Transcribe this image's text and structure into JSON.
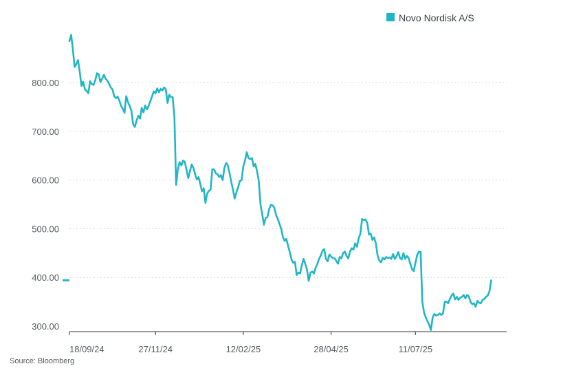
{
  "chart_data": {
    "type": "line",
    "title": "",
    "xlabel": "",
    "ylabel": "",
    "source": "Source: Bloomberg",
    "legend": {
      "position": "top-right",
      "label": "Novo Nordisk A/S"
    },
    "series_color": "#20b6c6",
    "grid_color": "#d6d9dc",
    "axis_color": "#333333",
    "ylim": [
      290,
      900
    ],
    "yticks": [
      {
        "value": 300,
        "label": "300.00"
      },
      {
        "value": 400,
        "label": "400.00"
      },
      {
        "value": 500,
        "label": "500.00"
      },
      {
        "value": 600,
        "label": "600.00"
      },
      {
        "value": 700,
        "label": "700.00"
      },
      {
        "value": 800,
        "label": "800.00"
      }
    ],
    "xlim": [
      0,
      254
    ],
    "xticks": [
      {
        "value": 0,
        "label": "18/09/24"
      },
      {
        "value": 50,
        "label": "27/11/24"
      },
      {
        "value": 101,
        "label": "12/02/25"
      },
      {
        "value": 152,
        "label": "28/04/25"
      },
      {
        "value": 201,
        "label": "11/07/25"
      }
    ],
    "last_value_marker": 394,
    "series": [
      {
        "name": "Novo Nordisk A/S",
        "points": [
          [
            0,
            885
          ],
          [
            1,
            898
          ],
          [
            2,
            868
          ],
          [
            3,
            832
          ],
          [
            4,
            838
          ],
          [
            5,
            846
          ],
          [
            6,
            822
          ],
          [
            7,
            793
          ],
          [
            8,
            802
          ],
          [
            9,
            786
          ],
          [
            10,
            783
          ],
          [
            11,
            778
          ],
          [
            12,
            803
          ],
          [
            13,
            797
          ],
          [
            14,
            795
          ],
          [
            15,
            805
          ],
          [
            16,
            819
          ],
          [
            17,
            817
          ],
          [
            18,
            801
          ],
          [
            19,
            808
          ],
          [
            20,
            816
          ],
          [
            21,
            808
          ],
          [
            22,
            804
          ],
          [
            23,
            798
          ],
          [
            24,
            790
          ],
          [
            25,
            786
          ],
          [
            26,
            772
          ],
          [
            27,
            768
          ],
          [
            28,
            771
          ],
          [
            29,
            763
          ],
          [
            30,
            752
          ],
          [
            31,
            746
          ],
          [
            32,
            738
          ],
          [
            33,
            772
          ],
          [
            34,
            760
          ],
          [
            35,
            752
          ],
          [
            36,
            742
          ],
          [
            37,
            715
          ],
          [
            38,
            709
          ],
          [
            39,
            722
          ],
          [
            40,
            732
          ],
          [
            41,
            726
          ],
          [
            42,
            748
          ],
          [
            43,
            739
          ],
          [
            44,
            753
          ],
          [
            45,
            745
          ],
          [
            46,
            752
          ],
          [
            47,
            762
          ],
          [
            48,
            772
          ],
          [
            49,
            782
          ],
          [
            50,
            778
          ],
          [
            51,
            788
          ],
          [
            52,
            780
          ],
          [
            53,
            787
          ],
          [
            54,
            784
          ],
          [
            55,
            790
          ],
          [
            56,
            786
          ],
          [
            57,
            758
          ],
          [
            58,
            775
          ],
          [
            59,
            770
          ],
          [
            60,
            770
          ],
          [
            61,
            729
          ],
          [
            62,
            590
          ],
          [
            63,
            622
          ],
          [
            64,
            637
          ],
          [
            65,
            630
          ],
          [
            66,
            640
          ],
          [
            67,
            637
          ],
          [
            68,
            620
          ],
          [
            69,
            604
          ],
          [
            70,
            618
          ],
          [
            71,
            632
          ],
          [
            72,
            625
          ],
          [
            73,
            612
          ],
          [
            74,
            601
          ],
          [
            75,
            606
          ],
          [
            76,
            592
          ],
          [
            77,
            577
          ],
          [
            78,
            583
          ],
          [
            79,
            553
          ],
          [
            80,
            572
          ],
          [
            81,
            578
          ],
          [
            82,
            580
          ],
          [
            83,
            622
          ],
          [
            84,
            622
          ],
          [
            85,
            614
          ],
          [
            86,
            612
          ],
          [
            87,
            606
          ],
          [
            88,
            610
          ],
          [
            89,
            600
          ],
          [
            90,
            625
          ],
          [
            91,
            635
          ],
          [
            92,
            630
          ],
          [
            93,
            614
          ],
          [
            94,
            596
          ],
          [
            95,
            580
          ],
          [
            96,
            562
          ],
          [
            97,
            575
          ],
          [
            98,
            585
          ],
          [
            99,
            598
          ],
          [
            100,
            600
          ],
          [
            101,
            628
          ],
          [
            102,
            640
          ],
          [
            103,
            657
          ],
          [
            104,
            645
          ],
          [
            105,
            643
          ],
          [
            106,
            645
          ],
          [
            107,
            628
          ],
          [
            108,
            633
          ],
          [
            109,
            618
          ],
          [
            110,
            598
          ],
          [
            111,
            550
          ],
          [
            112,
            530
          ],
          [
            113,
            508
          ],
          [
            114,
            522
          ],
          [
            115,
            524
          ],
          [
            116,
            540
          ],
          [
            117,
            549
          ],
          [
            118,
            548
          ],
          [
            119,
            543
          ],
          [
            120,
            528
          ],
          [
            121,
            520
          ],
          [
            122,
            510
          ],
          [
            123,
            500
          ],
          [
            124,
            483
          ],
          [
            125,
            475
          ],
          [
            126,
            479
          ],
          [
            127,
            465
          ],
          [
            128,
            452
          ],
          [
            129,
            437
          ],
          [
            130,
            430
          ],
          [
            131,
            432
          ],
          [
            132,
            405
          ],
          [
            133,
            410
          ],
          [
            134,
            408
          ],
          [
            135,
            425
          ],
          [
            136,
            438
          ],
          [
            137,
            428
          ],
          [
            138,
            416
          ],
          [
            139,
            393
          ],
          [
            140,
            410
          ],
          [
            141,
            412
          ],
          [
            142,
            408
          ],
          [
            143,
            420
          ],
          [
            144,
            428
          ],
          [
            145,
            438
          ],
          [
            146,
            445
          ],
          [
            147,
            455
          ],
          [
            148,
            458
          ],
          [
            149,
            438
          ],
          [
            150,
            433
          ],
          [
            151,
            447
          ],
          [
            152,
            443
          ],
          [
            153,
            440
          ],
          [
            154,
            439
          ],
          [
            155,
            434
          ],
          [
            156,
            428
          ],
          [
            157,
            442
          ],
          [
            158,
            439
          ],
          [
            159,
            450
          ],
          [
            160,
            453
          ],
          [
            161,
            444
          ],
          [
            162,
            439
          ],
          [
            163,
            453
          ],
          [
            164,
            460
          ],
          [
            165,
            457
          ],
          [
            166,
            470
          ],
          [
            167,
            463
          ],
          [
            168,
            480
          ],
          [
            169,
            490
          ],
          [
            170,
            520
          ],
          [
            171,
            518
          ],
          [
            172,
            519
          ],
          [
            173,
            512
          ],
          [
            174,
            488
          ],
          [
            175,
            490
          ],
          [
            176,
            477
          ],
          [
            177,
            482
          ],
          [
            178,
            470
          ],
          [
            179,
            445
          ],
          [
            180,
            435
          ],
          [
            181,
            431
          ],
          [
            182,
            440
          ],
          [
            183,
            437
          ],
          [
            184,
            442
          ],
          [
            185,
            440
          ],
          [
            186,
            441
          ],
          [
            187,
            438
          ],
          [
            188,
            448
          ],
          [
            189,
            438
          ],
          [
            190,
            443
          ],
          [
            191,
            452
          ],
          [
            192,
            440
          ],
          [
            193,
            437
          ],
          [
            194,
            450
          ],
          [
            195,
            438
          ],
          [
            196,
            444
          ],
          [
            197,
            440
          ],
          [
            198,
            428
          ],
          [
            199,
            417
          ],
          [
            200,
            413
          ],
          [
            201,
            430
          ],
          [
            202,
            446
          ],
          [
            203,
            453
          ],
          [
            204,
            452
          ],
          [
            205,
            350
          ],
          [
            206,
            328
          ],
          [
            207,
            318
          ],
          [
            208,
            310
          ],
          [
            209,
            303
          ],
          [
            210,
            292
          ],
          [
            211,
            318
          ],
          [
            212,
            325
          ],
          [
            213,
            322
          ],
          [
            214,
            323
          ],
          [
            215,
            326
          ],
          [
            216,
            323
          ],
          [
            217,
            326
          ],
          [
            218,
            350
          ],
          [
            219,
            350
          ],
          [
            220,
            347
          ],
          [
            221,
            356
          ],
          [
            222,
            363
          ],
          [
            223,
            367
          ],
          [
            224,
            355
          ],
          [
            225,
            360
          ],
          [
            226,
            354
          ],
          [
            227,
            358
          ],
          [
            228,
            360
          ],
          [
            229,
            364
          ],
          [
            230,
            357
          ],
          [
            231,
            364
          ],
          [
            232,
            361
          ],
          [
            233,
            350
          ],
          [
            234,
            345
          ],
          [
            235,
            347
          ],
          [
            236,
            340
          ],
          [
            237,
            352
          ],
          [
            238,
            348
          ],
          [
            239,
            347
          ],
          [
            240,
            354
          ],
          [
            241,
            356
          ],
          [
            242,
            360
          ],
          [
            243,
            363
          ],
          [
            244,
            372
          ],
          [
            245,
            394
          ]
        ]
      }
    ]
  }
}
